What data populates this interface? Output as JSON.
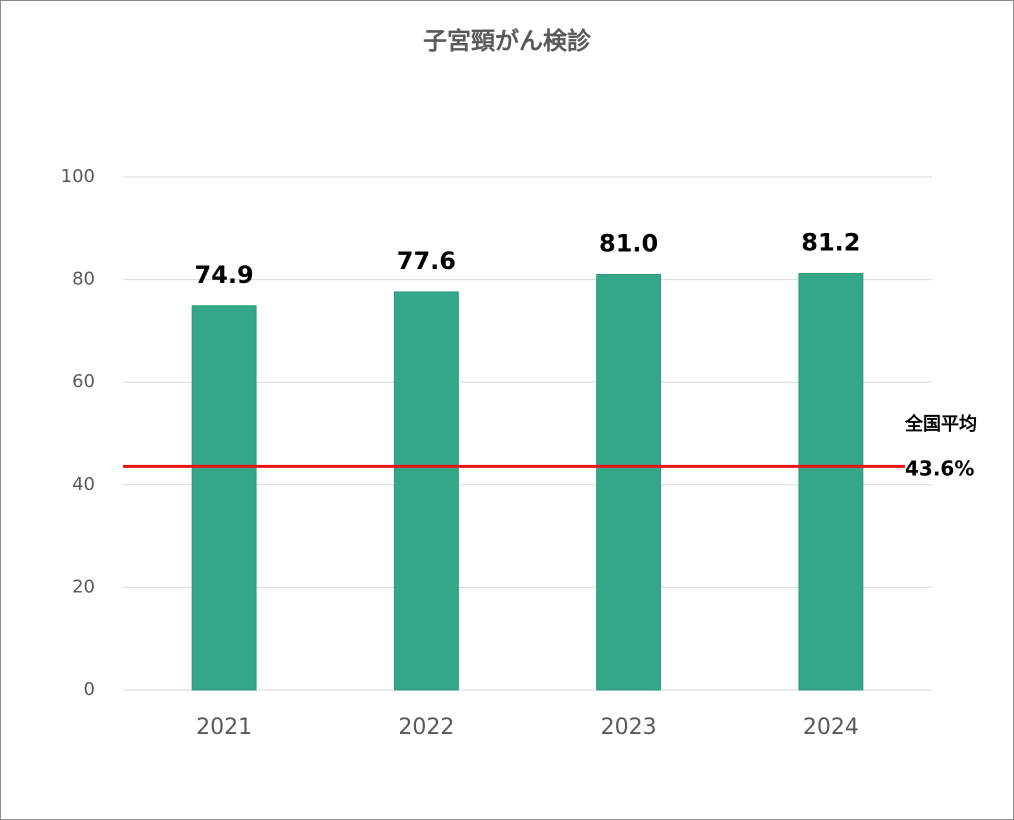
{
  "chart_data": {
    "type": "bar",
    "title": "子宮頸がん検診",
    "categories": [
      "2021",
      "2022",
      "2023",
      "2024"
    ],
    "values": [
      74.9,
      77.6,
      81.0,
      81.2
    ],
    "value_labels": [
      "74.9",
      "77.6",
      "81.0",
      "81.2"
    ],
    "color": "#34a789",
    "ylim": [
      0,
      100
    ],
    "yticks": [
      0,
      20,
      40,
      60,
      80,
      100
    ],
    "grid": true,
    "reference_line": {
      "label": "全国平均",
      "value": 43.6,
      "value_label": "43.6%",
      "color": "#e8140f"
    }
  }
}
